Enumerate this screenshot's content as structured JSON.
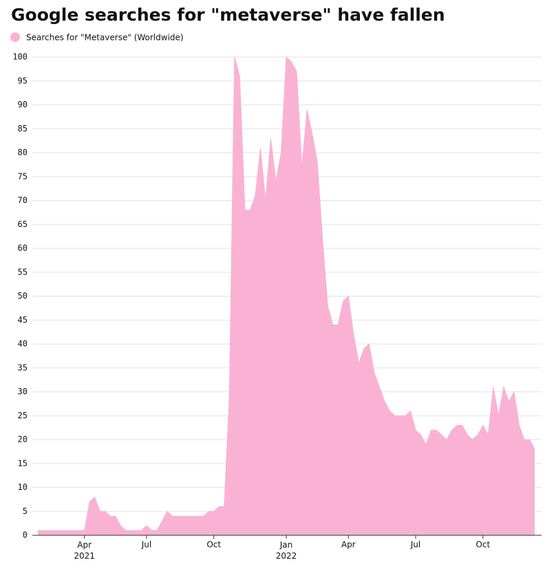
{
  "chart_data": {
    "type": "area",
    "title": "Google searches for \"metaverse\" have fallen",
    "categories": [
      null,
      null,
      null,
      null,
      null,
      null,
      null,
      null,
      null,
      "Apr 2021",
      null,
      null,
      null,
      null,
      null,
      null,
      null,
      null,
      null,
      null,
      null,
      "Jul",
      null,
      null,
      null,
      null,
      null,
      null,
      null,
      null,
      null,
      null,
      null,
      null,
      "Oct",
      null,
      null,
      null,
      null,
      null,
      null,
      null,
      null,
      null,
      null,
      null,
      null,
      null,
      "Jan 2022",
      null,
      null,
      null,
      null,
      null,
      null,
      null,
      null,
      null,
      null,
      null,
      "Apr",
      null,
      null,
      null,
      null,
      null,
      null,
      null,
      null,
      null,
      null,
      null,
      null,
      "Jul",
      null,
      null,
      null,
      null,
      null,
      null,
      null,
      null,
      null,
      null,
      null,
      null,
      "Oct",
      null,
      null,
      null,
      null,
      null,
      null,
      null,
      null,
      null,
      null
    ],
    "series": [
      {
        "name": "Searches for \"Metaverse\" (Worldwide)",
        "color": "#f9b2d3",
        "values": [
          1,
          1,
          1,
          1,
          1,
          1,
          1,
          1,
          1,
          1,
          7,
          8,
          5,
          5,
          4,
          4,
          2,
          1,
          1,
          1,
          1,
          2,
          1,
          1,
          3,
          5,
          4,
          4,
          4,
          4,
          4,
          4,
          4,
          5,
          5,
          6,
          6,
          29,
          100,
          96,
          68,
          68,
          71,
          81,
          70,
          83,
          74,
          80,
          100,
          99,
          97,
          77,
          89,
          84,
          78,
          62,
          48,
          44,
          44,
          49,
          50,
          42,
          36,
          39,
          40,
          34,
          31,
          28,
          26,
          25,
          25,
          25,
          26,
          22,
          21,
          19,
          22,
          22,
          21,
          20,
          22,
          23,
          23,
          21,
          20,
          21,
          23,
          21,
          31,
          25,
          31,
          28,
          30,
          23,
          20,
          20,
          18
        ]
      }
    ],
    "ylim": [
      0,
      100
    ],
    "yticks": [
      0,
      5,
      10,
      15,
      20,
      25,
      30,
      35,
      40,
      45,
      50,
      55,
      60,
      65,
      70,
      75,
      80,
      85,
      90,
      95,
      100
    ],
    "grid": true
  }
}
